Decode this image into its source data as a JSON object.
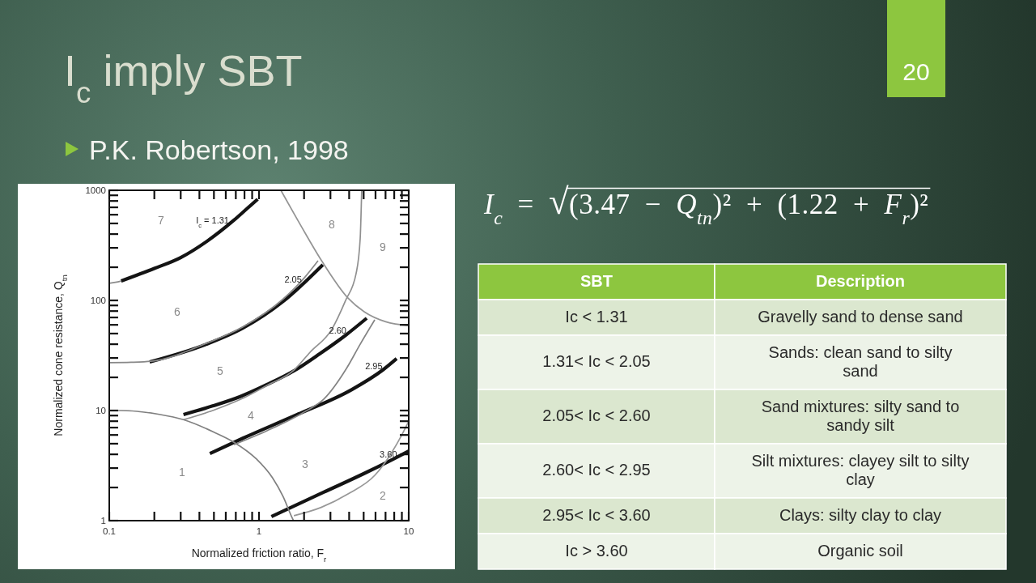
{
  "chart_data": [
    {
      "type": "line",
      "xlabel": "Normalized friction ratio, F$_{r}$",
      "ylabel": "Normalized cone resistance, Q$_{tn}$",
      "log": "xy",
      "xlim": [
        0.1,
        10
      ],
      "ylim": [
        1,
        1000
      ],
      "xticks": [
        0.1,
        {
          "value": 0.2,
          "label": null
        },
        {
          "value": 0.3,
          "label": null
        },
        {
          "value": 0.4,
          "label": null
        },
        {
          "value": 0.5,
          "label": null
        },
        {
          "value": 0.6,
          "label": null
        },
        {
          "value": 0.7,
          "label": null
        },
        {
          "value": 0.8,
          "label": null
        },
        {
          "value": 0.9,
          "label": null
        },
        1,
        {
          "value": 2,
          "label": null
        },
        {
          "value": 3,
          "label": null
        },
        {
          "value": 4,
          "label": null
        },
        {
          "value": 5,
          "label": null
        },
        {
          "value": 6,
          "label": null
        },
        {
          "value": 7,
          "label": null
        },
        {
          "value": 8,
          "label": null
        },
        {
          "value": 9,
          "label": null
        },
        10
      ],
      "yticks": [
        1,
        {
          "value": 2,
          "label": null
        },
        {
          "value": 3,
          "label": null
        },
        {
          "value": 4,
          "label": null
        },
        {
          "value": 5,
          "label": null
        },
        {
          "value": 6,
          "label": null
        },
        {
          "value": 7,
          "label": null
        },
        {
          "value": 8,
          "label": null
        },
        {
          "value": 9,
          "label": null
        },
        10,
        {
          "value": 20,
          "label": null
        },
        {
          "value": 30,
          "label": null
        },
        {
          "value": 40,
          "label": null
        },
        {
          "value": 50,
          "label": null
        },
        {
          "value": 60,
          "label": null
        },
        {
          "value": 70,
          "label": null
        },
        {
          "value": 80,
          "label": null
        },
        {
          "value": 90,
          "label": null
        },
        100,
        {
          "value": 200,
          "label": null
        },
        {
          "value": 300,
          "label": null
        },
        {
          "value": 400,
          "label": null
        },
        {
          "value": 500,
          "label": null
        },
        {
          "value": 600,
          "label": null
        },
        {
          "value": 700,
          "label": null
        },
        {
          "value": 800,
          "label": null
        },
        {
          "value": 900,
          "label": null
        },
        1000
      ],
      "series": [
        {
          "color": "#141414",
          "x": [
            0.12,
            0.2,
            0.3,
            0.45,
            0.68,
            0.83,
            0.98
          ],
          "values": [
            150,
            195,
            245,
            345,
            535,
            680,
            830
          ]
        },
        {
          "color": "#141414",
          "x": [
            0.186,
            0.446,
            0.78,
            1.45,
            2.67
          ],
          "values": [
            27.6,
            40,
            56,
            98,
            211
          ]
        },
        {
          "color": "#141414",
          "x": [
            0.313,
            0.49,
            0.75,
            1.13,
            1.71,
            2.54,
            3.79,
            5.24
          ],
          "values": [
            9.2,
            11,
            13.4,
            17.2,
            22.9,
            32.7,
            48.3,
            68.9
          ]
        },
        {
          "color": "#141414",
          "x": [
            0.47,
            0.78,
            1.8,
            4.1,
            6.7,
            8.3
          ],
          "values": [
            4.07,
            5.6,
            9.2,
            15.3,
            23.3,
            29.6
          ]
        },
        {
          "color": "#141414",
          "x": [
            1.21,
            2.7,
            5,
            7.3,
            10
          ],
          "values": [
            1.09,
            1.81,
            2.67,
            3.44,
            4.29
          ]
        },
        {
          "color": "#8c8c8c",
          "x": [
            0.1,
            0.11,
            0.12
          ],
          "values": [
            143,
            146,
            150
          ]
        },
        {
          "color": "#888888",
          "x": [
            0.1,
            0.14,
            0.19,
            0.45,
            0.78,
            1.45,
            2.03,
            2.48
          ],
          "values": [
            27.2,
            27.4,
            28,
            41,
            57.5,
            103,
            163,
            229
          ]
        },
        {
          "color": "#909090",
          "x": [
            0.313,
            0.495,
            0.75,
            1.13,
            1.71,
            2.2,
            3.07,
            3.78,
            4.45,
            4.74,
            4.85
          ],
          "values": [
            8.26,
            10.05,
            12.6,
            16.9,
            23.3,
            34,
            55,
            99.5,
            175,
            364,
            1000
          ]
        },
        {
          "color": "#848484",
          "x": [
            0.68,
            1.13,
            2.03,
            2.71,
            3.84,
            4.74,
            5.93
          ],
          "values": [
            4.9,
            6.55,
            9.8,
            12.7,
            24.1,
            40,
            66.6
          ]
        },
        {
          "color": "#949494",
          "x": [
            1.4,
            1.9,
            2.62,
            3.93,
            5.04,
            7.03,
            10
          ],
          "values": [
            1000,
            480,
            229,
            105,
            79,
            64,
            59
          ]
        },
        {
          "color": "#808080",
          "x": [
            0.1,
            0.12,
            0.216,
            0.313,
            0.494,
            0.688,
            0.959,
            1.23,
            1.45,
            1.64,
            1.7
          ],
          "values": [
            10,
            10,
            9.23,
            8.26,
            6.41,
            5.11,
            3.64,
            2.45,
            1.65,
            1.11,
            1
          ]
        },
        {
          "color": "#989898",
          "x": [
            1.71,
            2.6,
            3.93,
            5.95,
            7.63,
            9.02,
            10
          ],
          "values": [
            1.11,
            1.32,
            1.75,
            2.59,
            4.08,
            6.05,
            8
          ]
        }
      ],
      "annotations": [
        "7",
        "6",
        "5",
        "8",
        "9",
        "4",
        "1",
        "3",
        "2",
        {
          "text": "I$_{c}$ = 1.31",
          "x": 0.68,
          "y": 535
        },
        {
          "text": "2.05",
          "x": 2.08,
          "y": 155
        },
        {
          "text": "2.60",
          "x": 4.13,
          "y": 53.2
        },
        {
          "text": "2.95",
          "x": 7.2,
          "y": 25.2
        },
        {
          "text": "3.60",
          "x": 9,
          "y": 4
        }
      ]
    },
    {
      "type": "other",
      "title": "I$_{c}$ imply SBT",
      "subtitle": "P.K. Robertson, 1998",
      "annotations": [
        "I$_{c}$ = √(3.47 − Q$_{tn}$)² + (1.22 + F$_{r}$)²",
        "20",
        "SBT",
        "Description",
        "Ic < 1.31",
        "Gravelly sand to dense sand",
        "1.31< Ic < 2.05",
        "Sands: clean sand to silty sand",
        "2.05< Ic < 2.60",
        "Sand mixtures: silty sand to sandy silt",
        "2.60< Ic < 2.95",
        "Silt mixtures: clayey silt to silty clay",
        "2.95< Ic < 3.60",
        "Clays: silty clay to clay",
        "Ic > 3.60",
        "Organic soil"
      ]
    }
  ]
}
